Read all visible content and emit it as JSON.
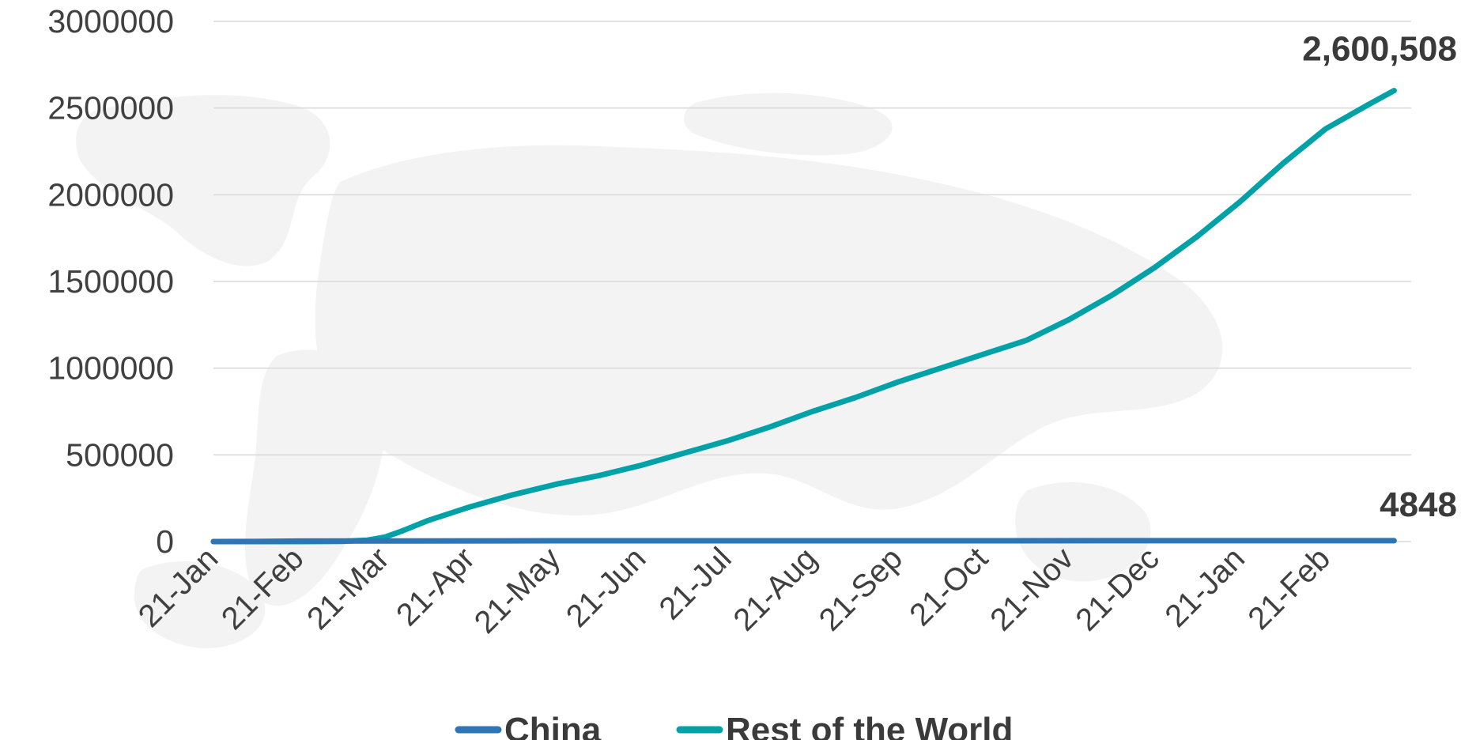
{
  "chart_data": {
    "type": "line",
    "y_ticks": [
      "3000000",
      "2500000",
      "2000000",
      "1500000",
      "1000000",
      "500000",
      "0"
    ],
    "ylim": [
      0,
      3000000
    ],
    "x_ticks": [
      "21-Jan",
      "21-Feb",
      "21-Mar",
      "21-Apr",
      "21-May",
      "21-Jun",
      "21-Jul",
      "21-Aug",
      "21-Sep",
      "21-Oct",
      "21-Nov",
      "21-Dec",
      "21-Jan",
      "21-Feb"
    ],
    "grid": "horizontal",
    "legend_position": "bottom",
    "series": [
      {
        "name": "China",
        "color": "#2e75b6",
        "end_label": "4848",
        "points": [
          [
            0,
            0
          ],
          [
            0.5,
            500
          ],
          [
            1,
            2800
          ],
          [
            2,
            3300
          ],
          [
            4,
            4600
          ],
          [
            13.8,
            4848
          ]
        ]
      },
      {
        "name": "Rest of the World",
        "color": "#00a2a8",
        "end_label": "2,600,508",
        "points": [
          [
            0,
            0
          ],
          [
            1,
            100
          ],
          [
            1.5,
            1000
          ],
          [
            1.8,
            8000
          ],
          [
            2,
            25000
          ],
          [
            2.2,
            60000
          ],
          [
            2.5,
            120000
          ],
          [
            3,
            200000
          ],
          [
            3.5,
            270000
          ],
          [
            4,
            330000
          ],
          [
            4.5,
            380000
          ],
          [
            5,
            440000
          ],
          [
            5.5,
            510000
          ],
          [
            6,
            580000
          ],
          [
            6.5,
            660000
          ],
          [
            7,
            750000
          ],
          [
            7.5,
            830000
          ],
          [
            8,
            920000
          ],
          [
            8.5,
            1000000
          ],
          [
            9,
            1080000
          ],
          [
            9.5,
            1160000
          ],
          [
            10,
            1280000
          ],
          [
            10.5,
            1420000
          ],
          [
            11,
            1580000
          ],
          [
            11.5,
            1760000
          ],
          [
            12,
            1960000
          ],
          [
            12.5,
            2180000
          ],
          [
            13,
            2380000
          ],
          [
            13.5,
            2520000
          ],
          [
            13.8,
            2600508
          ]
        ]
      }
    ]
  }
}
